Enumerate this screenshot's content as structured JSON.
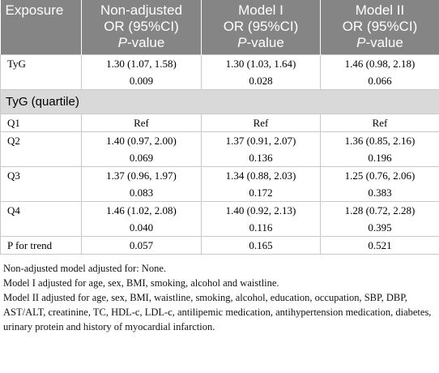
{
  "table": {
    "header": [
      {
        "lines": [
          "Exposure"
        ]
      },
      {
        "lines": [
          "Non-adjusted",
          "OR (95%CI)"
        ],
        "p_italic": "P",
        "p_rest": "-value"
      },
      {
        "lines": [
          "Model I",
          "OR (95%CI)"
        ],
        "p_italic": "P",
        "p_rest": "-value"
      },
      {
        "lines": [
          "Model II",
          "OR (95%CI)"
        ],
        "p_italic": "P",
        "p_rest": "-value"
      }
    ],
    "rows": [
      {
        "label": "TyG",
        "cells": [
          [
            "1.30 (1.07, 1.58)",
            "0.009"
          ],
          [
            "1.30 (1.03, 1.64)",
            "0.028"
          ],
          [
            "1.46 (0.98, 2.18)",
            "0.066"
          ]
        ]
      },
      {
        "section": "TyG (quartile)"
      },
      {
        "label": "Q1",
        "cells": [
          [
            "Ref"
          ],
          [
            "Ref"
          ],
          [
            "Ref"
          ]
        ]
      },
      {
        "label": "Q2",
        "cells": [
          [
            "1.40 (0.97, 2.00)",
            "0.069"
          ],
          [
            "1.37 (0.91, 2.07)",
            "0.136"
          ],
          [
            "1.36 (0.85, 2.16)",
            "0.196"
          ]
        ]
      },
      {
        "label": "Q3",
        "cells": [
          [
            "1.37 (0.96, 1.97)",
            "0.083"
          ],
          [
            "1.34 (0.88, 2.03)",
            "0.172"
          ],
          [
            "1.25 (0.76, 2.06)",
            "0.383"
          ]
        ]
      },
      {
        "label": "Q4",
        "cells": [
          [
            "1.46 (1.02, 2.08)",
            "0.040"
          ],
          [
            "1.40 (0.92, 2.13)",
            "0.116"
          ],
          [
            "1.28 (0.72, 2.28)",
            "0.395"
          ]
        ]
      },
      {
        "label": "P for trend",
        "cells": [
          [
            "0.057"
          ],
          [
            "0.165"
          ],
          [
            "0.521"
          ]
        ]
      }
    ]
  },
  "footnotes": [
    "Non-adjusted model adjusted for: None.",
    "Model I adjusted for age, sex, BMI, smoking, alcohol and waistline.",
    "Model II adjusted for age, sex, BMI, waistline, smoking, alcohol, education, occupation, SBP, DBP, AST/ALT, creatinine, TC, HDL-c, LDL-c, antilipemic medication, antihypertension medication, diabetes, urinary protein and history of myocardial infarction."
  ]
}
